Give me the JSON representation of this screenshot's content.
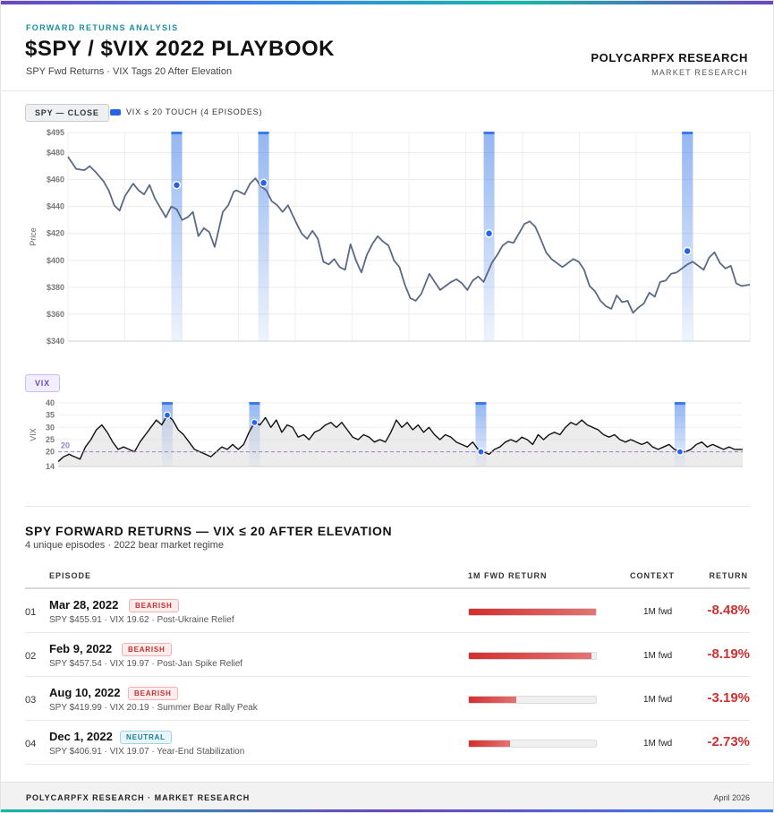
{
  "header": {
    "eyebrow": "FORWARD RETURNS ANALYSIS",
    "title": "$SPY / $VIX 2022 PLAYBOOK",
    "subtitle": "SPY Fwd Returns · VIX Tags 20 After Elevation",
    "brand": "POLYCARPFX RESEARCH",
    "brand_sub": "MARKET RESEARCH"
  },
  "legend": {
    "spy_chip": "SPY — CLOSE",
    "episodes_label": "VIX ≤ 20 TOUCH (4 EPISODES)",
    "vix_chip": "VIX"
  },
  "colors": {
    "price_line": "#5a6a85",
    "band": "#3b7ae8",
    "marker": "#2563eb",
    "vix_line": "#111111",
    "threshold": "#9b7fd6",
    "negative": "#d32f2f"
  },
  "chart_data": [
    {
      "type": "line",
      "title": "SPY — CLOSE",
      "ylabel": "Price",
      "ylim": [
        340,
        495
      ],
      "yticks": [
        340,
        360,
        380,
        400,
        420,
        440,
        460,
        480,
        495
      ],
      "ytick_labels": [
        "$340",
        "$360",
        "$380",
        "$400",
        "$420",
        "$440",
        "$460",
        "$480",
        "$495"
      ],
      "x_count": 252,
      "grid": true,
      "anchors": [
        [
          0,
          477
        ],
        [
          3,
          468
        ],
        [
          6,
          467
        ],
        [
          8,
          470
        ],
        [
          10,
          466
        ],
        [
          13,
          459
        ],
        [
          15,
          452
        ],
        [
          17,
          441
        ],
        [
          19,
          437
        ],
        [
          21,
          448
        ],
        [
          24,
          457
        ],
        [
          26,
          452
        ],
        [
          28,
          449
        ],
        [
          30,
          456
        ],
        [
          32,
          446
        ],
        [
          34,
          439
        ],
        [
          36,
          432
        ],
        [
          38,
          440
        ],
        [
          40,
          438
        ],
        [
          42,
          430
        ],
        [
          44,
          432
        ],
        [
          46,
          436
        ],
        [
          48,
          418
        ],
        [
          50,
          424
        ],
        [
          52,
          421
        ],
        [
          54,
          410
        ],
        [
          57,
          436
        ],
        [
          59,
          441
        ],
        [
          61,
          451
        ],
        [
          62,
          452
        ],
        [
          65,
          449
        ],
        [
          67,
          457
        ],
        [
          69,
          461
        ],
        [
          71,
          455
        ],
        [
          73,
          452
        ],
        [
          75,
          444
        ],
        [
          77,
          441
        ],
        [
          79,
          436
        ],
        [
          81,
          441
        ],
        [
          84,
          428
        ],
        [
          86,
          420
        ],
        [
          88,
          416
        ],
        [
          90,
          422
        ],
        [
          92,
          416
        ],
        [
          94,
          399
        ],
        [
          96,
          397
        ],
        [
          98,
          401
        ],
        [
          100,
          395
        ],
        [
          102,
          393
        ],
        [
          104,
          412
        ],
        [
          106,
          400
        ],
        [
          108,
          391
        ],
        [
          110,
          404
        ],
        [
          112,
          412
        ],
        [
          114,
          418
        ],
        [
          116,
          414
        ],
        [
          118,
          411
        ],
        [
          120,
          400
        ],
        [
          122,
          395
        ],
        [
          124,
          382
        ],
        [
          126,
          372
        ],
        [
          128,
          370
        ],
        [
          130,
          375
        ],
        [
          133,
          390
        ],
        [
          135,
          384
        ],
        [
          137,
          378
        ],
        [
          139,
          381
        ],
        [
          141,
          384
        ],
        [
          143,
          386
        ],
        [
          145,
          383
        ],
        [
          147,
          378
        ],
        [
          149,
          385
        ],
        [
          151,
          388
        ],
        [
          153,
          384
        ],
        [
          156,
          398
        ],
        [
          158,
          404
        ],
        [
          160,
          411
        ],
        [
          162,
          414
        ],
        [
          164,
          413
        ],
        [
          166,
          420
        ],
        [
          168,
          427
        ],
        [
          170,
          429
        ],
        [
          172,
          425
        ],
        [
          174,
          416
        ],
        [
          176,
          406
        ],
        [
          178,
          401
        ],
        [
          180,
          398
        ],
        [
          182,
          395
        ],
        [
          184,
          398
        ],
        [
          186,
          401
        ],
        [
          188,
          399
        ],
        [
          190,
          393
        ],
        [
          192,
          381
        ],
        [
          194,
          377
        ],
        [
          196,
          370
        ],
        [
          198,
          366
        ],
        [
          200,
          364
        ],
        [
          202,
          374
        ],
        [
          204,
          369
        ],
        [
          206,
          370
        ],
        [
          208,
          361
        ],
        [
          210,
          365
        ],
        [
          212,
          368
        ],
        [
          214,
          376
        ],
        [
          216,
          373
        ],
        [
          218,
          384
        ],
        [
          220,
          385
        ],
        [
          222,
          390
        ],
        [
          224,
          391
        ],
        [
          226,
          394
        ],
        [
          228,
          397
        ],
        [
          230,
          399
        ],
        [
          232,
          396
        ],
        [
          234,
          393
        ],
        [
          236,
          402
        ],
        [
          238,
          406
        ],
        [
          240,
          398
        ],
        [
          242,
          394
        ],
        [
          244,
          396
        ],
        [
          246,
          383
        ],
        [
          248,
          381
        ],
        [
          251,
          382
        ]
      ],
      "episode_markers": [
        {
          "x": 40,
          "y": 455.91
        },
        {
          "x": 72,
          "y": 457.54
        },
        {
          "x": 155,
          "y": 419.99
        },
        {
          "x": 228,
          "y": 406.91
        }
      ]
    },
    {
      "type": "area",
      "title": "VIX",
      "ylabel": "VIX",
      "ylim": [
        14,
        40
      ],
      "yticks": [
        14,
        20,
        25,
        30,
        35,
        40
      ],
      "ytick_labels": [
        "14",
        "20",
        "25",
        "30",
        "35",
        "40"
      ],
      "threshold": 20,
      "threshold_label": "20",
      "x_count": 252,
      "anchors": [
        [
          0,
          16
        ],
        [
          2,
          18
        ],
        [
          4,
          19
        ],
        [
          6,
          18
        ],
        [
          8,
          17
        ],
        [
          10,
          22
        ],
        [
          12,
          25
        ],
        [
          14,
          29
        ],
        [
          16,
          31
        ],
        [
          18,
          28
        ],
        [
          20,
          24
        ],
        [
          22,
          21
        ],
        [
          24,
          22
        ],
        [
          26,
          21
        ],
        [
          28,
          20
        ],
        [
          30,
          24
        ],
        [
          32,
          27
        ],
        [
          34,
          30
        ],
        [
          36,
          33
        ],
        [
          38,
          31
        ],
        [
          40,
          35
        ],
        [
          42,
          33
        ],
        [
          44,
          29
        ],
        [
          46,
          27
        ],
        [
          48,
          24
        ],
        [
          50,
          21
        ],
        [
          52,
          20
        ],
        [
          54,
          19
        ],
        [
          56,
          18
        ],
        [
          58,
          20
        ],
        [
          60,
          22
        ],
        [
          62,
          21
        ],
        [
          64,
          23
        ],
        [
          66,
          21
        ],
        [
          68,
          23
        ],
        [
          70,
          28
        ],
        [
          72,
          32
        ],
        [
          74,
          31
        ],
        [
          76,
          34
        ],
        [
          78,
          30
        ],
        [
          80,
          33
        ],
        [
          82,
          28
        ],
        [
          84,
          31
        ],
        [
          86,
          30
        ],
        [
          88,
          26
        ],
        [
          90,
          27
        ],
        [
          92,
          25
        ],
        [
          94,
          28
        ],
        [
          96,
          29
        ],
        [
          98,
          31
        ],
        [
          100,
          32
        ],
        [
          102,
          30
        ],
        [
          104,
          32
        ],
        [
          106,
          29
        ],
        [
          108,
          26
        ],
        [
          110,
          25
        ],
        [
          112,
          27
        ],
        [
          114,
          26
        ],
        [
          116,
          24
        ],
        [
          118,
          25
        ],
        [
          120,
          24
        ],
        [
          122,
          28
        ],
        [
          124,
          33
        ],
        [
          126,
          30
        ],
        [
          128,
          32
        ],
        [
          130,
          29
        ],
        [
          132,
          31
        ],
        [
          134,
          28
        ],
        [
          136,
          30
        ],
        [
          138,
          27
        ],
        [
          140,
          25
        ],
        [
          142,
          27
        ],
        [
          144,
          26
        ],
        [
          146,
          24
        ],
        [
          148,
          23
        ],
        [
          150,
          22
        ],
        [
          152,
          24
        ],
        [
          154,
          21
        ],
        [
          156,
          20
        ],
        [
          158,
          19
        ],
        [
          160,
          21
        ],
        [
          162,
          22
        ],
        [
          164,
          24
        ],
        [
          166,
          25
        ],
        [
          168,
          24
        ],
        [
          170,
          26
        ],
        [
          172,
          25
        ],
        [
          174,
          23
        ],
        [
          176,
          27
        ],
        [
          178,
          25
        ],
        [
          180,
          27
        ],
        [
          182,
          28
        ],
        [
          184,
          27
        ],
        [
          186,
          30
        ],
        [
          188,
          32
        ],
        [
          190,
          31
        ],
        [
          192,
          33
        ],
        [
          194,
          31
        ],
        [
          196,
          30
        ],
        [
          198,
          29
        ],
        [
          200,
          27
        ],
        [
          202,
          26
        ],
        [
          204,
          27
        ],
        [
          206,
          25
        ],
        [
          208,
          24
        ],
        [
          210,
          25
        ],
        [
          212,
          24
        ],
        [
          214,
          23
        ],
        [
          216,
          24
        ],
        [
          218,
          22
        ],
        [
          220,
          21
        ],
        [
          222,
          22
        ],
        [
          224,
          23
        ],
        [
          226,
          21
        ],
        [
          228,
          20
        ],
        [
          230,
          20
        ],
        [
          232,
          21
        ],
        [
          234,
          23
        ],
        [
          236,
          24
        ],
        [
          238,
          22
        ],
        [
          240,
          23
        ],
        [
          242,
          22
        ],
        [
          244,
          21
        ],
        [
          246,
          22
        ],
        [
          248,
          21
        ],
        [
          251,
          21
        ]
      ]
    },
    {
      "type": "table",
      "title": "SPY FORWARD RETURNS — VIX ≤ 20 AFTER ELEVATION",
      "columns": [
        "EPISODE",
        "1M FWD RETURN",
        "CONTEXT",
        "RETURN"
      ],
      "returns": [
        -8.48,
        -8.19,
        -3.19,
        -2.73
      ]
    }
  ],
  "episodes_table": {
    "title": "SPY FORWARD RETURNS — VIX ≤ 20 AFTER ELEVATION",
    "subtitle": "4 unique episodes · 2022 bear market regime",
    "col_episode": "EPISODE",
    "col_bar": "1M FWD RETURN",
    "col_context": "CONTEXT",
    "col_return": "RETURN",
    "bar_max_abs": 8.48,
    "rows": [
      {
        "num": "01",
        "date": "Mar 28, 2022",
        "badge": "BEARISH",
        "badge_type": "bear",
        "detail": "SPY $455.91 · VIX 19.62 · Post-Ukraine Relief",
        "context": "1M fwd",
        "return_text": "-8.48%",
        "return_value": -8.48
      },
      {
        "num": "02",
        "date": "Feb 9, 2022",
        "badge": "BEARISH",
        "badge_type": "bear",
        "detail": "SPY $457.54 · VIX 19.97 · Post-Jan Spike Relief",
        "context": "1M fwd",
        "return_text": "-8.19%",
        "return_value": -8.19
      },
      {
        "num": "03",
        "date": "Aug 10, 2022",
        "badge": "BEARISH",
        "badge_type": "bear",
        "detail": "SPY $419.99 · VIX 20.19 · Summer Bear Rally Peak",
        "context": "1M fwd",
        "return_text": "-3.19%",
        "return_value": -3.19
      },
      {
        "num": "04",
        "date": "Dec 1, 2022",
        "badge": "NEUTRAL",
        "badge_type": "neut",
        "detail": "SPY $406.91 · VIX 19.07 · Year-End Stabilization",
        "context": "1M fwd",
        "return_text": "-2.73%",
        "return_value": -2.73
      }
    ]
  },
  "footer": {
    "left": "POLYCARPFX RESEARCH · MARKET RESEARCH",
    "right": "April 2026"
  }
}
